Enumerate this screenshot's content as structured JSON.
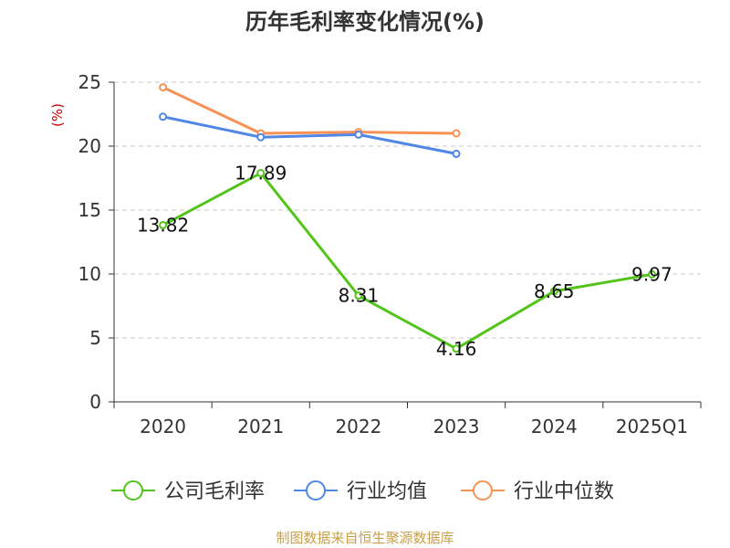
{
  "chart_data": {
    "type": "line",
    "title": "历年毛利率变化情况(%)",
    "ylabel": "(%)",
    "xlabel": "",
    "categories": [
      "2020",
      "2021",
      "2022",
      "2023",
      "2024",
      "2025Q1"
    ],
    "ylim": [
      0,
      25
    ],
    "yticks": [
      0,
      5,
      10,
      15,
      20,
      25
    ],
    "grid": true,
    "legend_position": "bottom",
    "series": [
      {
        "name": "公司毛利率",
        "color": "#52c41a",
        "values": [
          13.82,
          17.89,
          8.31,
          4.16,
          8.65,
          9.97
        ],
        "labels": [
          "13.82",
          "17.89",
          "8.31",
          "4.16",
          "8.65",
          "9.97"
        ]
      },
      {
        "name": "行业均值",
        "color": "#5087e5",
        "values": [
          22.3,
          20.7,
          20.9,
          19.4,
          null,
          null
        ]
      },
      {
        "name": "行业中位数",
        "color": "#f79256",
        "values": [
          24.6,
          21.0,
          21.1,
          21.0,
          null,
          null
        ]
      }
    ]
  },
  "footer": "制图数据来自恒生聚源数据库"
}
